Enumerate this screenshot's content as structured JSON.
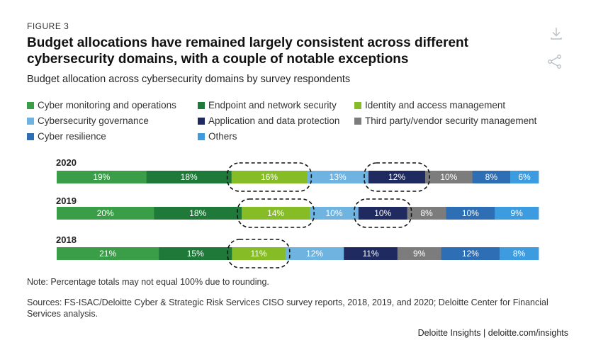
{
  "header": {
    "figure_label": "FIGURE 3",
    "title": "Budget allocations have remained largely consistent across different cybersecurity domains, with a couple of notable exceptions",
    "subtitle": "Budget allocation across cybersecurity domains by survey respondents"
  },
  "icons": {
    "download": "download-icon",
    "share": "share-icon"
  },
  "chart_data": {
    "type": "bar",
    "orientation": "horizontal-stacked",
    "title": "Budget allocation across cybersecurity domains by survey respondents",
    "unit": "%",
    "categories": [
      "2020",
      "2019",
      "2018"
    ],
    "series": [
      {
        "name": "Cyber monitoring and operations",
        "color": "#3a9e48",
        "values": [
          19,
          20,
          21
        ]
      },
      {
        "name": "Endpoint and network security",
        "color": "#1f7a3a",
        "values": [
          18,
          18,
          15
        ]
      },
      {
        "name": "Identity and access management",
        "color": "#86bc25",
        "values": [
          16,
          14,
          11
        ]
      },
      {
        "name": "Cybersecurity governance",
        "color": "#6fb3e0",
        "values": [
          13,
          10,
          12
        ]
      },
      {
        "name": "Application and data protection",
        "color": "#1f2a60",
        "values": [
          12,
          10,
          11
        ]
      },
      {
        "name": "Third party/vendor security management",
        "color": "#7c7c7c",
        "values": [
          10,
          8,
          9
        ]
      },
      {
        "name": "Cyber resilience",
        "color": "#2d6eb4",
        "values": [
          8,
          10,
          12
        ]
      },
      {
        "name": "Others",
        "color": "#3d9ce0",
        "values": [
          6,
          9,
          8
        ]
      }
    ],
    "highlights": [
      {
        "year": "2020",
        "series": [
          "Identity and access management",
          "Application and data protection"
        ]
      },
      {
        "year": "2019",
        "series": [
          "Identity and access management",
          "Application and data protection"
        ]
      },
      {
        "year": "2018",
        "series": [
          "Identity and access management"
        ]
      }
    ]
  },
  "footer": {
    "note": "Note: Percentage totals may not equal 100% due to rounding.",
    "sources": "Sources: FS-ISAC/Deloitte Cyber & Strategic Risk Services CISO survey reports, 2018, 2019, and 2020; Deloitte Center for Financial Services analysis.",
    "brand": "Deloitte Insights | deloitte.com/insights"
  }
}
